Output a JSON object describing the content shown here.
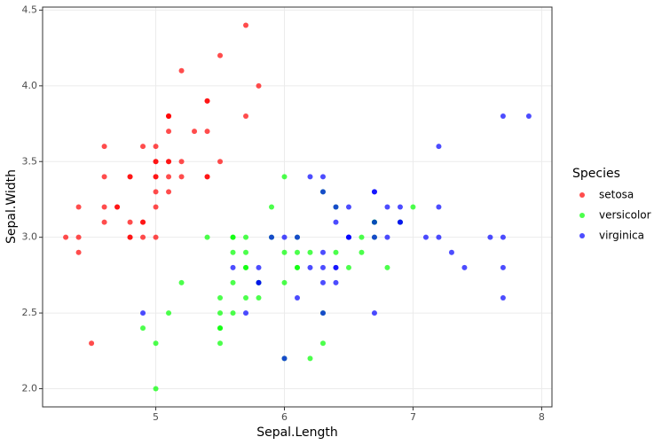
{
  "chart_data": {
    "type": "scatter",
    "x_label": "Sepal.Length",
    "y_label": "Sepal.Width",
    "xlim": [
      4.12,
      8.08
    ],
    "ylim": [
      1.88,
      4.52
    ],
    "xticks": [
      5,
      6,
      7,
      8
    ],
    "yticks": [
      {
        "value": 2.0,
        "label": "2.0"
      },
      {
        "value": 2.5,
        "label": "2.5"
      },
      {
        "value": 3.0,
        "label": "3.0"
      },
      {
        "value": 3.5,
        "label": "3.5"
      },
      {
        "value": 4.0,
        "label": "4.0"
      },
      {
        "value": 4.5,
        "label": "4.5"
      }
    ],
    "grid": true,
    "legend_title": "Species",
    "legend_position": "right",
    "series": [
      {
        "name": "setosa",
        "color": "#ff0000",
        "x": [
          5.1,
          4.9,
          4.7,
          4.6,
          5.0,
          5.4,
          4.6,
          5.0,
          4.4,
          4.9,
          5.4,
          4.8,
          4.8,
          4.3,
          5.8,
          5.7,
          5.4,
          5.1,
          5.7,
          5.1,
          5.4,
          5.1,
          4.6,
          5.1,
          4.8,
          5.0,
          5.0,
          5.2,
          5.2,
          4.7,
          4.8,
          5.4,
          5.2,
          5.5,
          4.9,
          5.0,
          5.5,
          4.9,
          4.4,
          5.1,
          5.0,
          4.5,
          4.4,
          5.0,
          5.1,
          4.8,
          5.1,
          4.6,
          5.3,
          5.0
        ],
        "values": [
          3.5,
          3.0,
          3.2,
          3.1,
          3.6,
          3.9,
          3.4,
          3.4,
          2.9,
          3.1,
          3.7,
          3.4,
          3.0,
          3.0,
          4.0,
          4.4,
          3.9,
          3.5,
          3.8,
          3.8,
          3.4,
          3.7,
          3.6,
          3.3,
          3.4,
          3.0,
          3.4,
          3.5,
          3.4,
          3.2,
          3.1,
          3.4,
          4.1,
          4.2,
          3.1,
          3.2,
          3.5,
          3.6,
          3.0,
          3.4,
          3.5,
          2.3,
          3.2,
          3.5,
          3.8,
          3.0,
          3.8,
          3.2,
          3.7,
          3.3
        ]
      },
      {
        "name": "versicolor",
        "color": "#00ff00",
        "x": [
          7.0,
          6.4,
          6.9,
          5.5,
          6.5,
          5.7,
          6.3,
          4.9,
          6.6,
          5.2,
          5.0,
          5.9,
          6.0,
          6.1,
          5.6,
          6.7,
          5.6,
          5.8,
          6.2,
          5.6,
          5.9,
          6.1,
          6.3,
          6.1,
          6.4,
          6.6,
          6.8,
          6.7,
          6.0,
          5.7,
          5.5,
          5.5,
          5.8,
          6.0,
          5.4,
          6.0,
          6.7,
          6.3,
          5.6,
          5.5,
          5.5,
          6.1,
          5.8,
          5.0,
          5.6,
          5.7,
          5.7,
          6.2,
          5.1,
          5.7
        ],
        "values": [
          3.2,
          3.2,
          3.1,
          2.3,
          2.8,
          2.8,
          3.3,
          2.4,
          2.9,
          2.7,
          2.0,
          3.0,
          2.2,
          2.9,
          2.9,
          3.1,
          3.0,
          2.7,
          2.2,
          2.5,
          3.2,
          2.8,
          2.5,
          2.8,
          2.9,
          3.0,
          2.8,
          3.0,
          2.9,
          2.6,
          2.4,
          2.4,
          2.7,
          2.7,
          3.0,
          3.4,
          3.1,
          2.3,
          3.0,
          2.5,
          2.6,
          3.0,
          2.6,
          2.3,
          2.7,
          3.0,
          2.9,
          2.9,
          2.5,
          2.8
        ]
      },
      {
        "name": "virginica",
        "color": "#0000ff",
        "x": [
          6.3,
          5.8,
          7.1,
          6.3,
          6.5,
          7.6,
          4.9,
          7.3,
          6.7,
          7.2,
          6.5,
          6.4,
          6.8,
          5.7,
          5.8,
          6.4,
          6.5,
          7.7,
          7.7,
          6.0,
          6.9,
          5.6,
          7.7,
          6.3,
          6.7,
          7.2,
          6.2,
          6.1,
          6.4,
          7.2,
          7.4,
          7.9,
          6.4,
          6.3,
          6.1,
          7.7,
          6.3,
          6.4,
          6.0,
          6.9,
          6.7,
          6.9,
          5.8,
          6.8,
          6.7,
          6.7,
          6.3,
          6.5,
          6.2,
          5.9
        ],
        "values": [
          3.3,
          2.7,
          3.0,
          2.9,
          3.0,
          3.0,
          2.5,
          2.9,
          2.5,
          3.6,
          3.2,
          2.7,
          3.0,
          2.5,
          2.8,
          3.2,
          3.0,
          3.8,
          2.6,
          2.2,
          3.2,
          2.8,
          2.8,
          2.7,
          3.3,
          3.2,
          2.8,
          3.0,
          2.8,
          3.0,
          2.8,
          3.8,
          2.8,
          2.8,
          2.6,
          3.0,
          3.4,
          3.1,
          3.0,
          3.1,
          3.1,
          3.1,
          2.7,
          3.2,
          3.3,
          3.0,
          2.5,
          3.0,
          3.4,
          3.0
        ]
      }
    ]
  }
}
